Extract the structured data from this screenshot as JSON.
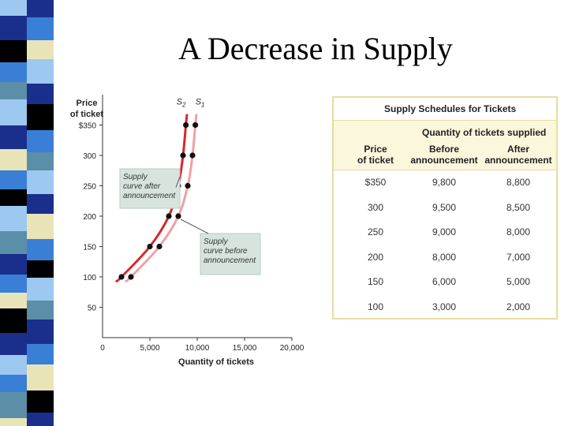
{
  "slide": {
    "title": "A Decrease in Supply"
  },
  "stripe_colors": [
    "#1a2f8c",
    "#3a7fd6",
    "#e8e4b8",
    "#9dc8f0",
    "#000000",
    "#5b8fa8",
    "#ffffff"
  ],
  "chart_data": {
    "type": "line",
    "ylabel_line1": "Price",
    "ylabel_line2": "of ticket",
    "xlabel": "Quantity of tickets",
    "xlim": [
      0,
      20000
    ],
    "ylim": [
      0,
      400
    ],
    "x_tick_labels": [
      "0",
      "5,000",
      "10,000",
      "15,000",
      "20,000"
    ],
    "x_tick_values": [
      0,
      5000,
      10000,
      15000,
      20000
    ],
    "y_tick_labels": [
      "$350",
      "300",
      "250",
      "200",
      "150",
      "100",
      "50"
    ],
    "y_tick_values": [
      350,
      300,
      250,
      200,
      150,
      100,
      50
    ],
    "series": [
      {
        "name": "S2",
        "color": "#d7262b",
        "points": [
          [
            2000,
            100
          ],
          [
            5000,
            150
          ],
          [
            7000,
            200
          ],
          [
            8000,
            250
          ],
          [
            8500,
            300
          ],
          [
            8800,
            350
          ]
        ]
      },
      {
        "name": "S1",
        "color": "#f0a0a4",
        "points": [
          [
            3000,
            100
          ],
          [
            6000,
            150
          ],
          [
            8000,
            200
          ],
          [
            9000,
            250
          ],
          [
            9500,
            300
          ],
          [
            9800,
            350
          ]
        ]
      }
    ],
    "annotations": [
      {
        "text_lines": [
          "Supply",
          "curve after",
          "announcement"
        ]
      },
      {
        "text_lines": [
          "Supply",
          "curve before",
          "announcement"
        ]
      }
    ]
  },
  "table": {
    "title": "Supply Schedules for Tickets",
    "group_header": "Quantity of tickets supplied",
    "col_price": "Price\nof ticket",
    "col_before": "Before\nannouncement",
    "col_after": "After\nannouncement",
    "rows": [
      {
        "price": "$350",
        "before": "9,800",
        "after": "8,800"
      },
      {
        "price": "300",
        "before": "9,500",
        "after": "8,500"
      },
      {
        "price": "250",
        "before": "9,000",
        "after": "8,000"
      },
      {
        "price": "200",
        "before": "8,000",
        "after": "7,000"
      },
      {
        "price": "150",
        "before": "6,000",
        "after": "5,000"
      },
      {
        "price": "100",
        "before": "3,000",
        "after": "2,000"
      }
    ]
  }
}
